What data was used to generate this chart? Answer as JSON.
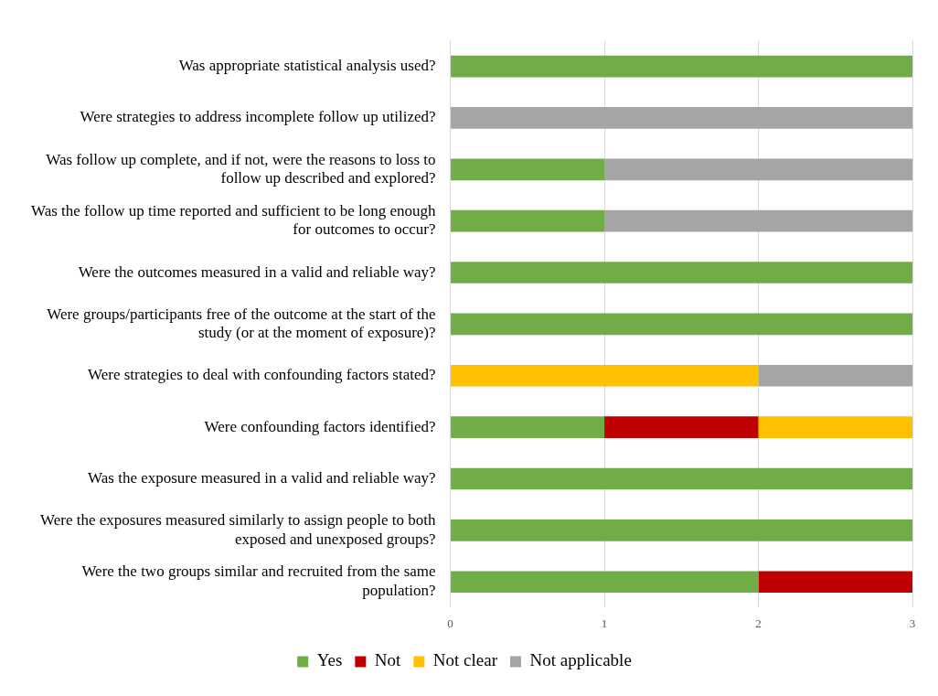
{
  "chart_data": {
    "type": "bar",
    "orientation": "horizontal",
    "stacked": true,
    "categories": [
      "Was appropriate statistical analysis used?",
      "Were strategies to address incomplete follow up utilized?",
      "Was follow up complete, and if not, were the reasons to loss to follow up described and explored?",
      "Was the follow up time reported and sufficient to be long enough for outcomes to occur?",
      "Were the outcomes measured in a valid and reliable way?",
      "Were groups/participants free of the outcome at the start of the study (or at the moment of exposure)?",
      "Were strategies to deal with confounding factors stated?",
      "Were confounding factors identified?",
      "Was the exposure measured in a valid and reliable way?",
      "Were the exposures measured similarly to assign people to both exposed and unexposed groups?",
      "Were the two groups similar and recruited from the same population?"
    ],
    "series": [
      {
        "name": "Yes",
        "color": "#70ad47",
        "values": [
          3,
          0,
          1,
          1,
          3,
          3,
          0,
          1,
          3,
          3,
          2
        ]
      },
      {
        "name": "Not",
        "color": "#c00000",
        "values": [
          0,
          0,
          0,
          0,
          0,
          0,
          0,
          1,
          0,
          0,
          1
        ]
      },
      {
        "name": "Not clear",
        "color": "#ffc000",
        "values": [
          0,
          0,
          0,
          0,
          0,
          0,
          2,
          1,
          0,
          0,
          0
        ]
      },
      {
        "name": "Not applicable",
        "color": "#a5a5a5",
        "values": [
          0,
          3,
          2,
          2,
          0,
          0,
          1,
          0,
          0,
          0,
          0
        ]
      }
    ],
    "xlim": [
      0,
      3
    ],
    "xticks": [
      0,
      1,
      2,
      3
    ],
    "grid": "x",
    "legend": "bottom"
  }
}
